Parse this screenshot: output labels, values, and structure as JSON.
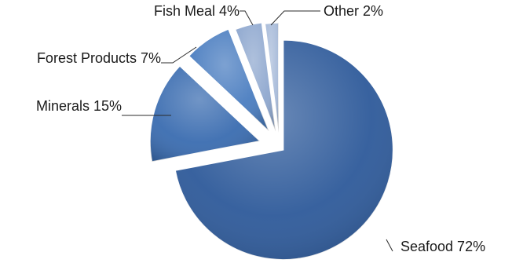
{
  "chart_data": {
    "type": "pie",
    "title": "",
    "start_angle_deg": 0,
    "direction": "clockwise",
    "exploded": true,
    "legend": "none",
    "slices": [
      {
        "label": "Seafood 72%",
        "name": "Seafood",
        "value": 72,
        "color": "#2e5a9a"
      },
      {
        "label": "Minerals 15%",
        "name": "Minerals",
        "value": 15,
        "color": "#3a6cb0"
      },
      {
        "label": "Forest Products 7%",
        "name": "Forest Products",
        "value": 7,
        "color": "#4a7dc0"
      },
      {
        "label": "Fish Meal 4%",
        "name": "Fish Meal",
        "value": 4,
        "color": "#8fa8cf"
      },
      {
        "label": "Other 2%",
        "name": "Other",
        "value": 2,
        "color": "#a9bcda"
      }
    ]
  }
}
